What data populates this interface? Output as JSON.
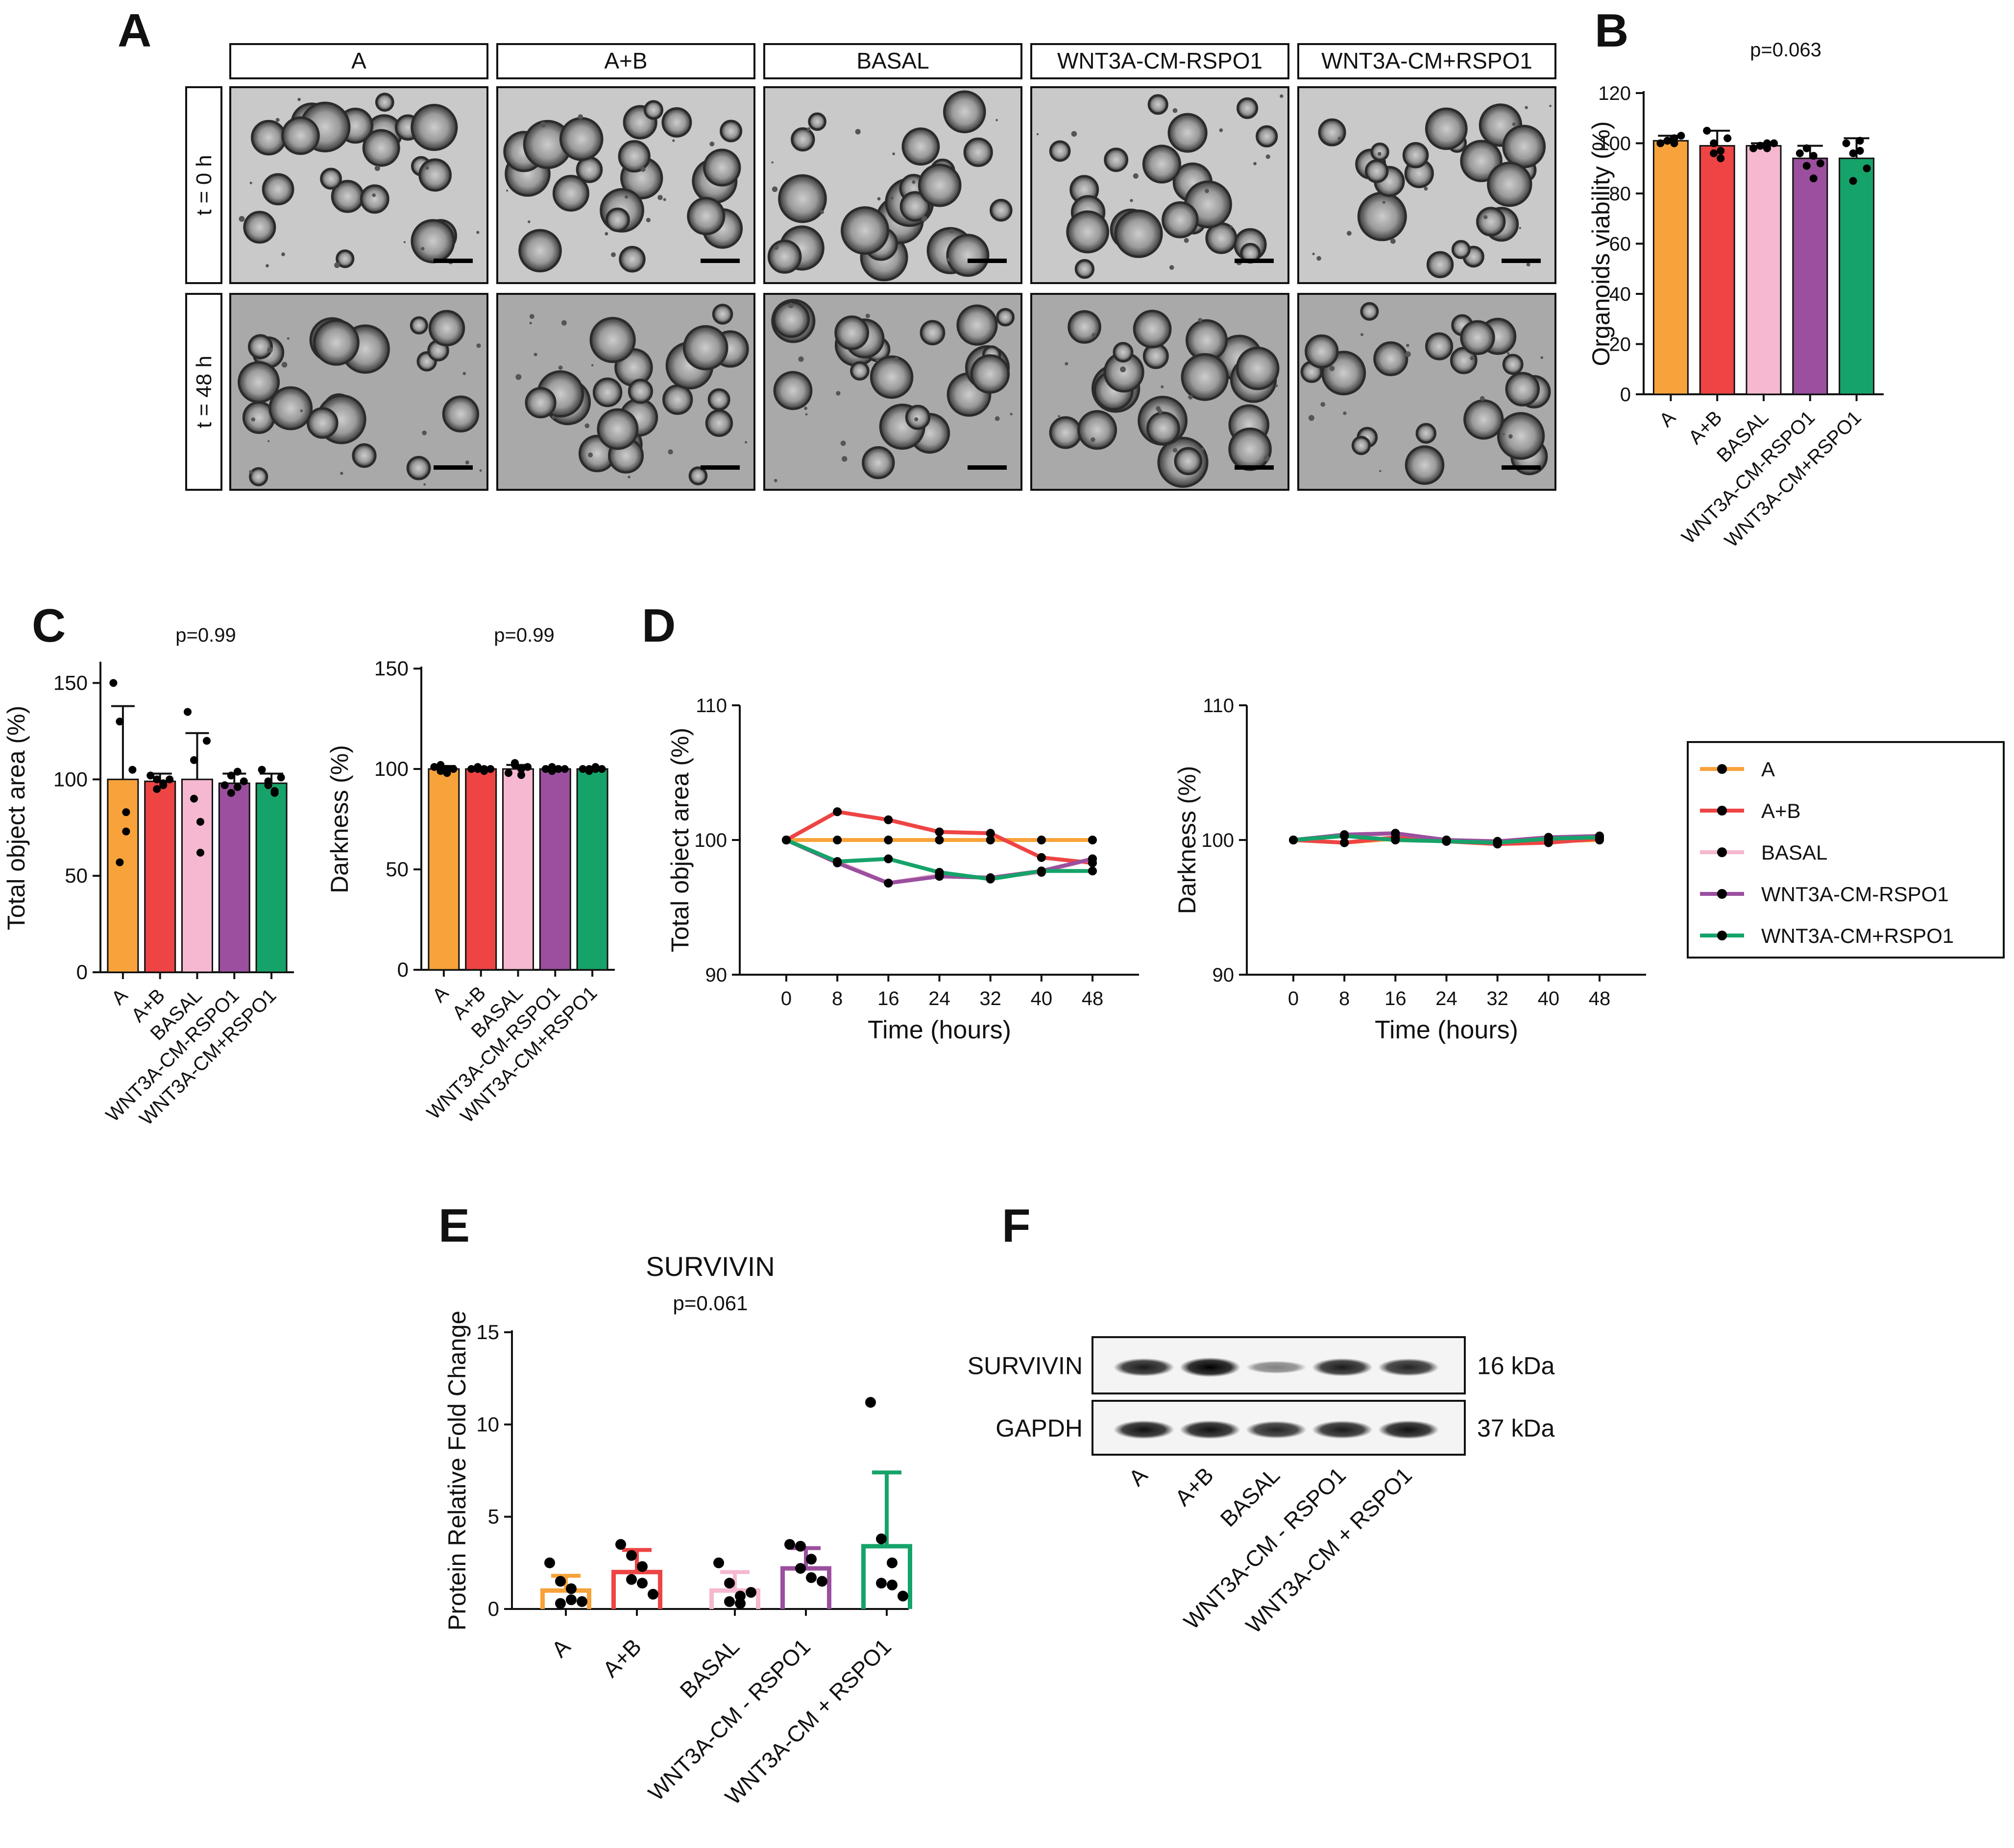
{
  "colors": {
    "A": "#f7a23a",
    "A+B": "#ee4444",
    "BASAL": "#f5b8d0",
    "WNT3A-CM-RSPO1": "#9b4f9e",
    "WNT3A-CM+RSPO1": "#16a36a",
    "axis": "#111111"
  },
  "panels": {
    "A": "A",
    "B": "B",
    "C": "C",
    "D": "D",
    "E": "E",
    "F": "F"
  },
  "panel_a": {
    "columns": [
      "A",
      "A+B",
      "BASAL",
      "WNT3A-CM-RSPO1",
      "WNT3A-CM+RSPO1"
    ],
    "rows": [
      "t = 0 h",
      "t = 48 h"
    ]
  },
  "chart_data": [
    {
      "id": "viability",
      "type": "bar",
      "title": "p=0.063",
      "ylabel": "Organoids viability (%)",
      "ylim": [
        0,
        120
      ],
      "yticks": [
        0,
        20,
        40,
        60,
        80,
        100,
        120
      ],
      "categories": [
        "A",
        "A+B",
        "BASAL",
        "WNT3A-CM-RSPO1",
        "WNT3A-CM+RSPO1"
      ],
      "values": [
        101,
        99,
        99,
        94,
        94
      ],
      "errors": [
        2,
        6,
        1,
        5,
        8
      ],
      "points": [
        [
          100,
          101,
          102,
          101,
          100,
          103
        ],
        [
          105,
          100,
          97,
          96,
          94,
          102
        ],
        [
          98,
          99,
          100,
          99,
          98,
          100
        ],
        [
          96,
          91,
          86,
          98,
          95,
          92
        ],
        [
          100,
          96,
          97,
          85,
          101,
          90
        ]
      ]
    },
    {
      "id": "area",
      "type": "bar",
      "title": "p=0.99",
      "ylabel": "Total object area (%)",
      "ylim": [
        0,
        160
      ],
      "yticks": [
        0,
        50,
        100,
        150
      ],
      "categories": [
        "A",
        "A+B",
        "BASAL",
        "WNT3A-CM-RSPO1",
        "WNT3A-CM+RSPO1"
      ],
      "values": [
        100,
        99,
        100,
        98,
        98
      ],
      "errors": [
        38,
        4,
        24,
        5,
        5
      ],
      "points": [
        [
          150,
          130,
          83,
          57,
          73,
          105
        ],
        [
          102,
          95,
          98,
          100,
          97,
          100
        ],
        [
          135,
          110,
          62,
          90,
          78,
          120
        ],
        [
          97,
          102,
          96,
          93,
          104,
          99
        ],
        [
          105,
          97,
          93,
          99,
          94,
          101
        ]
      ]
    },
    {
      "id": "darkness",
      "type": "bar",
      "title": "p=0.99",
      "ylabel": "Darkness (%)",
      "ylim": [
        0,
        150
      ],
      "yticks": [
        0,
        50,
        100,
        150
      ],
      "categories": [
        "A",
        "A+B",
        "BASAL",
        "WNT3A-CM-RSPO1",
        "WNT3A-CM+RSPO1"
      ],
      "values": [
        100,
        100,
        100,
        100,
        100
      ],
      "errors": [
        1.5,
        0.8,
        2,
        0.6,
        0.5
      ],
      "points": [
        [
          101,
          99,
          100,
          102,
          98,
          100
        ],
        [
          100,
          100,
          99,
          101,
          100,
          100
        ],
        [
          98,
          102,
          100,
          103,
          97,
          101
        ],
        [
          100,
          101,
          100,
          99,
          100,
          100
        ],
        [
          100,
          100,
          101,
          99,
          100,
          100
        ]
      ]
    },
    {
      "id": "area-time",
      "type": "line",
      "xlabel": "Time (hours)",
      "ylabel": "Total object area (%)",
      "ylim": [
        90,
        110
      ],
      "yticks": [
        90,
        100,
        110
      ],
      "x": [
        0,
        8,
        16,
        24,
        32,
        40,
        48
      ],
      "series": [
        {
          "name": "A",
          "values": [
            100,
            100,
            100,
            100,
            100,
            100,
            100
          ]
        },
        {
          "name": "A+B",
          "values": [
            100,
            102.1,
            101.5,
            100.6,
            100.5,
            98.7,
            98.3
          ]
        },
        {
          "name": "BASAL",
          "values": [
            100,
            98.4,
            96.8,
            97.4,
            97.2,
            97.6,
            98.6
          ]
        },
        {
          "name": "WNT3A-CM-RSPO1",
          "values": [
            100,
            98.3,
            96.8,
            97.3,
            97.2,
            97.7,
            98.6
          ]
        },
        {
          "name": "WNT3A-CM+RSPO1",
          "values": [
            100,
            98.4,
            98.6,
            97.6,
            97.1,
            97.7,
            97.7
          ]
        }
      ]
    },
    {
      "id": "darkness-time",
      "type": "line",
      "xlabel": "Time (hours)",
      "ylabel": "Darkness (%)",
      "ylim": [
        90,
        110
      ],
      "yticks": [
        90,
        100,
        110
      ],
      "x": [
        0,
        8,
        16,
        24,
        32,
        40,
        48
      ],
      "series": [
        {
          "name": "A",
          "values": [
            100,
            99.8,
            100.1,
            100,
            99.8,
            99.9,
            100
          ]
        },
        {
          "name": "A+B",
          "values": [
            100,
            99.8,
            100.2,
            99.9,
            99.7,
            99.8,
            100.1
          ]
        },
        {
          "name": "BASAL",
          "values": [
            100,
            100.3,
            100.5,
            100,
            99.9,
            100.2,
            100.2
          ]
        },
        {
          "name": "WNT3A-CM-RSPO1",
          "values": [
            100,
            100.4,
            100.5,
            100,
            99.9,
            100.2,
            100.3
          ]
        },
        {
          "name": "WNT3A-CM+RSPO1",
          "values": [
            100,
            100.3,
            100,
            99.9,
            99.8,
            100.1,
            100.2
          ]
        }
      ]
    },
    {
      "id": "survivin",
      "type": "bar",
      "title": "SURVIVIN",
      "subtitle": "p=0.061",
      "ylabel": "Protein Relative Fold Change",
      "ylim": [
        0,
        15
      ],
      "yticks": [
        0,
        5,
        10,
        15
      ],
      "categories": [
        "A",
        "A+B",
        "BASAL",
        "WNT3A-CM - RSPO1",
        "WNT3A-CM + RSPO1"
      ],
      "values": [
        1,
        2,
        1,
        2.2,
        3.4
      ],
      "errors": [
        0.8,
        1.2,
        1,
        1.1,
        4
      ],
      "points": [
        [
          2.5,
          1.5,
          0.5,
          0.3,
          1.1,
          0.4
        ],
        [
          3.5,
          2.9,
          2.3,
          1.6,
          1.4,
          0.8
        ],
        [
          2.5,
          1.4,
          0.7,
          0.4,
          0.3,
          0.9
        ],
        [
          3.5,
          3.4,
          2.7,
          2.2,
          1.7,
          1.5
        ],
        [
          11.2,
          3.8,
          2.5,
          1.4,
          1.3,
          0.7
        ]
      ]
    }
  ],
  "legend": [
    "A",
    "A+B",
    "BASAL",
    "WNT3A-CM-RSPO1",
    "WNT3A-CM+RSPO1"
  ],
  "blot": {
    "rows": [
      {
        "label": "SURVIVIN",
        "size": "16 kDa",
        "intensity": [
          0.85,
          1.0,
          0.3,
          0.85,
          0.8
        ]
      },
      {
        "label": "GAPDH",
        "size": "37 kDa",
        "intensity": [
          0.9,
          0.9,
          0.8,
          0.85,
          0.9
        ]
      }
    ],
    "lanes": [
      "A",
      "A+B",
      "BASAL",
      "WNT3A-CM - RSPO1",
      "WNT3A-CM + RSPO1"
    ]
  }
}
